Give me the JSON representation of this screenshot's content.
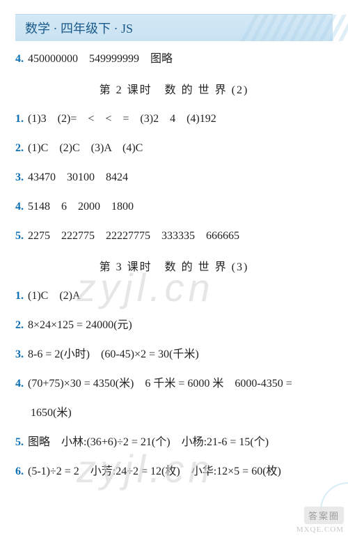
{
  "header": "数学 · 四年级下 · JS",
  "watermarkText": "zyjl.cn",
  "corner": {
    "badge": "答案圈",
    "url": "MXQE.COM"
  },
  "lines": [
    {
      "num": "4.",
      "text": "450000000　549999999　图略"
    }
  ],
  "section2": {
    "title": "第 2 课时　数 的 世 界 (2)",
    "lines": [
      {
        "num": "1.",
        "text": "(1)3　(2)=　<　<　=　(3)2　4　(4)192"
      },
      {
        "num": "2.",
        "text": "(1)C　(2)C　(3)A　(4)C"
      },
      {
        "num": "3.",
        "text": "43470　30100　8424"
      },
      {
        "num": "4.",
        "text": "5148　6　2000　1800"
      },
      {
        "num": "5.",
        "text": "2275　222775　22227775　333335　666665"
      }
    ]
  },
  "section3": {
    "title": "第 3 课时　数 的 世 界 (3)",
    "lines": [
      {
        "num": "1.",
        "text": "(1)C　(2)A"
      },
      {
        "num": "2.",
        "text": "8×24×125 = 24000(元)"
      },
      {
        "num": "3.",
        "text": "8-6 = 2(小时)　(60-45)×2 = 30(千米)"
      },
      {
        "num": "4.",
        "text": "(70+75)×30 = 4350(米)　6 千米 = 6000 米　6000-4350 ="
      },
      {
        "indent": true,
        "text": "1650(米)"
      },
      {
        "num": "5.",
        "text": "图略　小林:(36+6)÷2 = 21(个)　小杨:21-6 = 15(个)"
      },
      {
        "num": "6.",
        "text": "(5-1)÷2 = 2　小芳:24÷2 = 12(枚)　小华:12×5 = 60(枚)"
      }
    ]
  }
}
